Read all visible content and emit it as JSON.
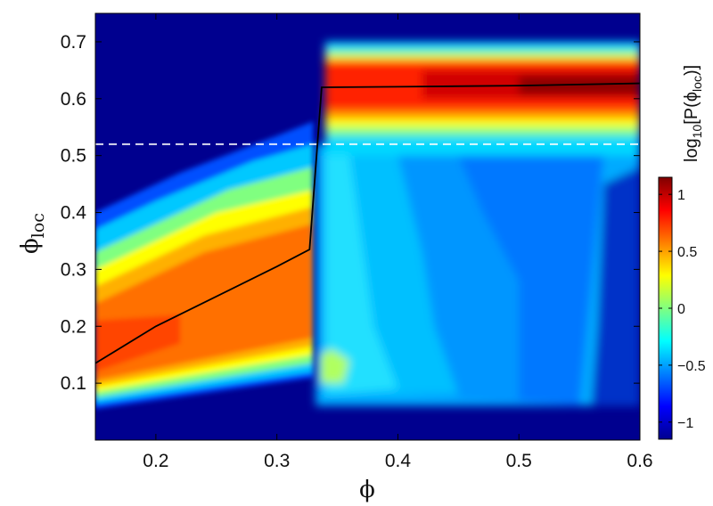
{
  "chart_data": {
    "type": "heatmap",
    "title": "",
    "xlabel": "ϕ",
    "ylabel_main": "ϕ",
    "ylabel_sub": "loc",
    "xlim": [
      0.15,
      0.6
    ],
    "ylim": [
      0.0,
      0.75
    ],
    "xticks": [
      "0.2",
      "0.3",
      "0.4",
      "0.5",
      "0.6"
    ],
    "xtick_values": [
      0.2,
      0.3,
      0.4,
      0.5,
      0.6
    ],
    "yticks": [
      "0.1",
      "0.2",
      "0.3",
      "0.4",
      "0.5",
      "0.6",
      "0.7"
    ],
    "ytick_values": [
      0.1,
      0.2,
      0.3,
      0.4,
      0.5,
      0.6,
      0.7
    ],
    "colorbar": {
      "label_pre": "log",
      "label_sub": "10",
      "label_mid": "[P(ϕ",
      "label_sub2": "loc",
      "label_post": ")]",
      "range": [
        -1.15,
        1.15
      ],
      "ticks": [
        "1",
        "0.5",
        "0",
        "−0.5",
        "−1"
      ],
      "tick_values": [
        1,
        0.5,
        0,
        -0.5,
        -1
      ],
      "colormap": "jet"
    },
    "reference_line": {
      "y": 0.52,
      "style": "dashed",
      "color": "#ffffff"
    },
    "mean_curve": {
      "color": "#000000",
      "x": [
        0.15,
        0.2,
        0.3,
        0.327,
        0.337,
        0.4,
        0.5,
        0.6
      ],
      "y": [
        0.135,
        0.2,
        0.305,
        0.335,
        0.62,
        0.621,
        0.623,
        0.627
      ]
    },
    "background_color": "#00008f"
  }
}
